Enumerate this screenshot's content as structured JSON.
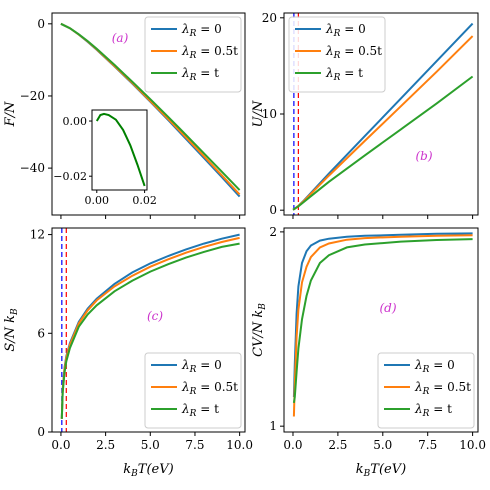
{
  "colors": {
    "series": [
      "#1f77b4",
      "#ff7f0e",
      "#2ca02c"
    ],
    "annotation": "#cc33cc",
    "vline_blue": "#0000ff",
    "vline_red": "#ff0000",
    "axis": "#000000"
  },
  "legend_labels": [
    "λR = 0",
    "λR = 0.5t",
    "λR = t"
  ],
  "chart_data": [
    {
      "panel": "a",
      "type": "line",
      "tag": "(a)",
      "ylabel": "F/N",
      "xlabel": "",
      "xlim": [
        -0.5,
        10.3
      ],
      "ylim": [
        -53,
        3
      ],
      "xticks": [
        0,
        2.5,
        5,
        7.5,
        10
      ],
      "yticks": [
        0,
        -20,
        -40
      ],
      "ytick_labels": [
        "0",
        "−20",
        "−40"
      ],
      "show_xtick_labels": false,
      "legend_position": "top-right",
      "x": [
        0,
        0.5,
        1,
        1.5,
        2,
        3,
        4,
        5,
        6,
        7,
        8,
        9,
        10
      ],
      "series": [
        {
          "name": "λR = 0",
          "values": [
            0,
            -1.2,
            -3.0,
            -5.0,
            -7.2,
            -11.8,
            -16.6,
            -21.6,
            -26.7,
            -31.9,
            -37.2,
            -42.5,
            -47.9
          ]
        },
        {
          "name": "λR = 0.5t",
          "values": [
            0,
            -1.2,
            -3.0,
            -4.9,
            -7.1,
            -11.7,
            -16.4,
            -21.4,
            -26.4,
            -31.5,
            -36.7,
            -42.0,
            -47.3
          ]
        },
        {
          "name": "λR = t",
          "values": [
            0,
            -1.2,
            -2.9,
            -4.8,
            -6.9,
            -11.4,
            -16.1,
            -20.9,
            -25.8,
            -30.8,
            -35.9,
            -41.0,
            -46.1
          ]
        }
      ],
      "inset": {
        "xlim": [
          -0.002,
          0.021
        ],
        "ylim": [
          -0.025,
          0.004
        ],
        "xticks": [
          0,
          0.02
        ],
        "xtick_labels": [
          "0.00",
          "0.02"
        ],
        "yticks": [
          0,
          -0.02
        ],
        "ytick_labels": [
          "0.00",
          "−0.02"
        ],
        "x": [
          0,
          0.0015,
          0.003,
          0.005,
          0.008,
          0.011,
          0.014,
          0.017,
          0.02
        ],
        "values": [
          0.0,
          0.0022,
          0.0026,
          0.0022,
          0.0005,
          -0.0032,
          -0.0088,
          -0.0158,
          -0.0235
        ]
      }
    },
    {
      "panel": "b",
      "type": "line",
      "tag": "(b)",
      "ylabel": "U/N",
      "xlabel": "",
      "xlim": [
        -0.5,
        10.3
      ],
      "ylim": [
        -0.5,
        20.5
      ],
      "xticks": [
        0,
        2.5,
        5,
        7.5,
        10
      ],
      "yticks": [
        0,
        10,
        20
      ],
      "ytick_labels": [
        "0",
        "10",
        "20"
      ],
      "show_xtick_labels": false,
      "legend_position": "top-left",
      "vlines": [
        {
          "x": 0.05,
          "color": "blue"
        },
        {
          "x": 0.3,
          "color": "red"
        }
      ],
      "x": [
        0,
        0.1,
        0.3,
        0.6,
        1,
        2,
        4,
        6,
        8,
        10
      ],
      "series": [
        {
          "name": "λR = 0",
          "values": [
            0.05,
            0.15,
            0.45,
            1.0,
            1.8,
            3.8,
            7.7,
            11.6,
            15.5,
            19.4
          ]
        },
        {
          "name": "λR = 0.5t",
          "values": [
            0.05,
            0.15,
            0.45,
            0.95,
            1.7,
            3.6,
            7.2,
            10.8,
            14.4,
            18.1
          ]
        },
        {
          "name": "λR = t",
          "values": [
            0.05,
            0.15,
            0.4,
            0.85,
            1.45,
            2.95,
            5.7,
            8.4,
            11.1,
            13.9
          ]
        }
      ]
    },
    {
      "panel": "c",
      "type": "line",
      "tag": "(c)",
      "ylabel": "S/N kB",
      "xlabel": "kBT(eV)",
      "xlim": [
        -0.5,
        10.3
      ],
      "ylim": [
        0,
        12.4
      ],
      "xticks": [
        0,
        2.5,
        5,
        7.5,
        10
      ],
      "xtick_labels": [
        "0.0",
        "2.5",
        "5.0",
        "7.5",
        "10.0"
      ],
      "yticks": [
        0,
        6,
        12
      ],
      "ytick_labels": [
        "0",
        "6",
        "12"
      ],
      "show_xtick_labels": true,
      "legend_position": "bottom-right",
      "vlines": [
        {
          "x": 0.05,
          "color": "blue"
        },
        {
          "x": 0.3,
          "color": "red"
        }
      ],
      "x": [
        0.05,
        0.1,
        0.2,
        0.3,
        0.5,
        1,
        1.5,
        2,
        3,
        4,
        5,
        6,
        7,
        8,
        9,
        10
      ],
      "series": [
        {
          "name": "λR = 0",
          "values": [
            0.8,
            2.6,
            3.9,
            4.6,
            5.4,
            6.7,
            7.5,
            8.1,
            9.0,
            9.7,
            10.25,
            10.7,
            11.1,
            11.45,
            11.75,
            12.0
          ]
        },
        {
          "name": "λR = 0.5t",
          "values": [
            0.8,
            2.5,
            3.8,
            4.5,
            5.3,
            6.6,
            7.4,
            8.0,
            8.85,
            9.5,
            10.05,
            10.5,
            10.9,
            11.25,
            11.55,
            11.8
          ]
        },
        {
          "name": "λR = t",
          "values": [
            0.8,
            2.4,
            3.6,
            4.3,
            5.1,
            6.4,
            7.15,
            7.7,
            8.55,
            9.2,
            9.75,
            10.2,
            10.6,
            10.95,
            11.25,
            11.45
          ]
        }
      ]
    },
    {
      "panel": "d",
      "type": "line",
      "tag": "(d)",
      "ylabel": "CV/N kB",
      "xlabel": "kBT(eV)",
      "xlim": [
        -0.5,
        10.3
      ],
      "ylim": [
        0.97,
        2.02
      ],
      "xticks": [
        0,
        2.5,
        5,
        7.5,
        10
      ],
      "xtick_labels": [
        "0.0",
        "2.5",
        "5.0",
        "7.5",
        "10.0"
      ],
      "yticks": [
        1,
        2
      ],
      "ytick_labels": [
        "1",
        "2"
      ],
      "show_xtick_labels": true,
      "legend_position": "bottom-right",
      "x": [
        0.05,
        0.1,
        0.2,
        0.3,
        0.5,
        0.75,
        1,
        1.5,
        2,
        3,
        4,
        6,
        8,
        10
      ],
      "series": [
        {
          "name": "λR = 0",
          "values": [
            1.15,
            1.32,
            1.58,
            1.72,
            1.84,
            1.9,
            1.93,
            1.955,
            1.965,
            1.975,
            1.98,
            1.985,
            1.99,
            1.992
          ]
        },
        {
          "name": "λR = 0.5t",
          "values": [
            1.05,
            1.22,
            1.46,
            1.6,
            1.74,
            1.82,
            1.87,
            1.92,
            1.94,
            1.96,
            1.968,
            1.975,
            1.98,
            1.983
          ]
        },
        {
          "name": "λR = t",
          "values": [
            1.12,
            1.15,
            1.28,
            1.4,
            1.55,
            1.67,
            1.75,
            1.84,
            1.88,
            1.92,
            1.935,
            1.95,
            1.958,
            1.963
          ]
        }
      ]
    }
  ]
}
